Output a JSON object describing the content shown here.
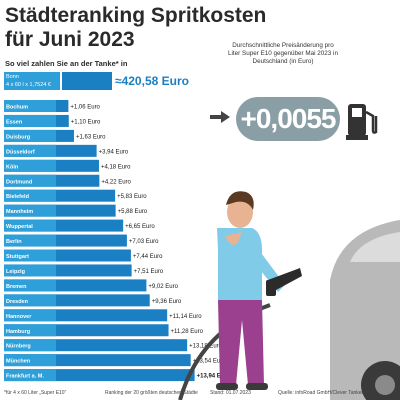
{
  "header": {
    "title_line1": "Städteranking Spritkosten",
    "title_line2": "für Juni 2023",
    "subtitle": "So viel zahlen Sie an der Tanke* in"
  },
  "reference": {
    "city": "Bonn",
    "formula": "4 x 60 l x 1,7524 €",
    "total": "≈420,58 Euro"
  },
  "price_change": {
    "description": "Durchschnittliche Preisänderung pro Liter Super E10 gegenüber Mai 2023 in Deutschland (in Euro)",
    "value": "+0,0055"
  },
  "colors": {
    "bar": "#1b7fc3",
    "bar_light": "#2e9fd8",
    "bubble": "#8a9ea6",
    "person_shirt": "#7fcbe8",
    "person_pants": "#9b3f8f"
  },
  "icons": [
    "arrow-right-icon",
    "fuel-pump-icon",
    "person-illustration",
    "car-illustration"
  ],
  "chart_data": {
    "type": "bar",
    "orientation": "horizontal",
    "categories": [
      "Bochum",
      "Essen",
      "Duisburg",
      "Düsseldorf",
      "Köln",
      "Dortmund",
      "Bielefeld",
      "Mannheim",
      "Wuppertal",
      "Berlin",
      "Stuttgart",
      "Leipzig",
      "Bremen",
      "Dresden",
      "Hannover",
      "Hamburg",
      "Nürnberg",
      "München",
      "Frankfurt a. M."
    ],
    "values": [
      1.06,
      1.1,
      1.63,
      3.94,
      4.18,
      4.22,
      5.83,
      5.88,
      6.65,
      7.03,
      7.44,
      7.51,
      9.02,
      9.36,
      11.14,
      11.28,
      13.18,
      13.54,
      13.94
    ],
    "value_labels": [
      "+1,06 Euro",
      "+1,10 Euro",
      "+1,63 Euro",
      "+3,94 Euro",
      "+4,18 Euro",
      "+4,22 Euro",
      "+5,83 Euro",
      "+5,88 Euro",
      "+6,65 Euro",
      "+7,03 Euro",
      "+7,44 Euro",
      "+7,51 Euro",
      "+9,02 Euro",
      "+9,36 Euro",
      "+11,14 Euro",
      "+11,28 Euro",
      "+13,18 Euro",
      "+13,54 Euro",
      "+13,94 Euro"
    ]
  },
  "footer": {
    "note": "*für 4 x 60 Liter „Super E10“",
    "ranking": "Ranking der 20 größten deutschen Städte",
    "date": "Stand: 01.07.2023",
    "source": "Quelle: infoRoad GmbH/Clever Tanken"
  }
}
